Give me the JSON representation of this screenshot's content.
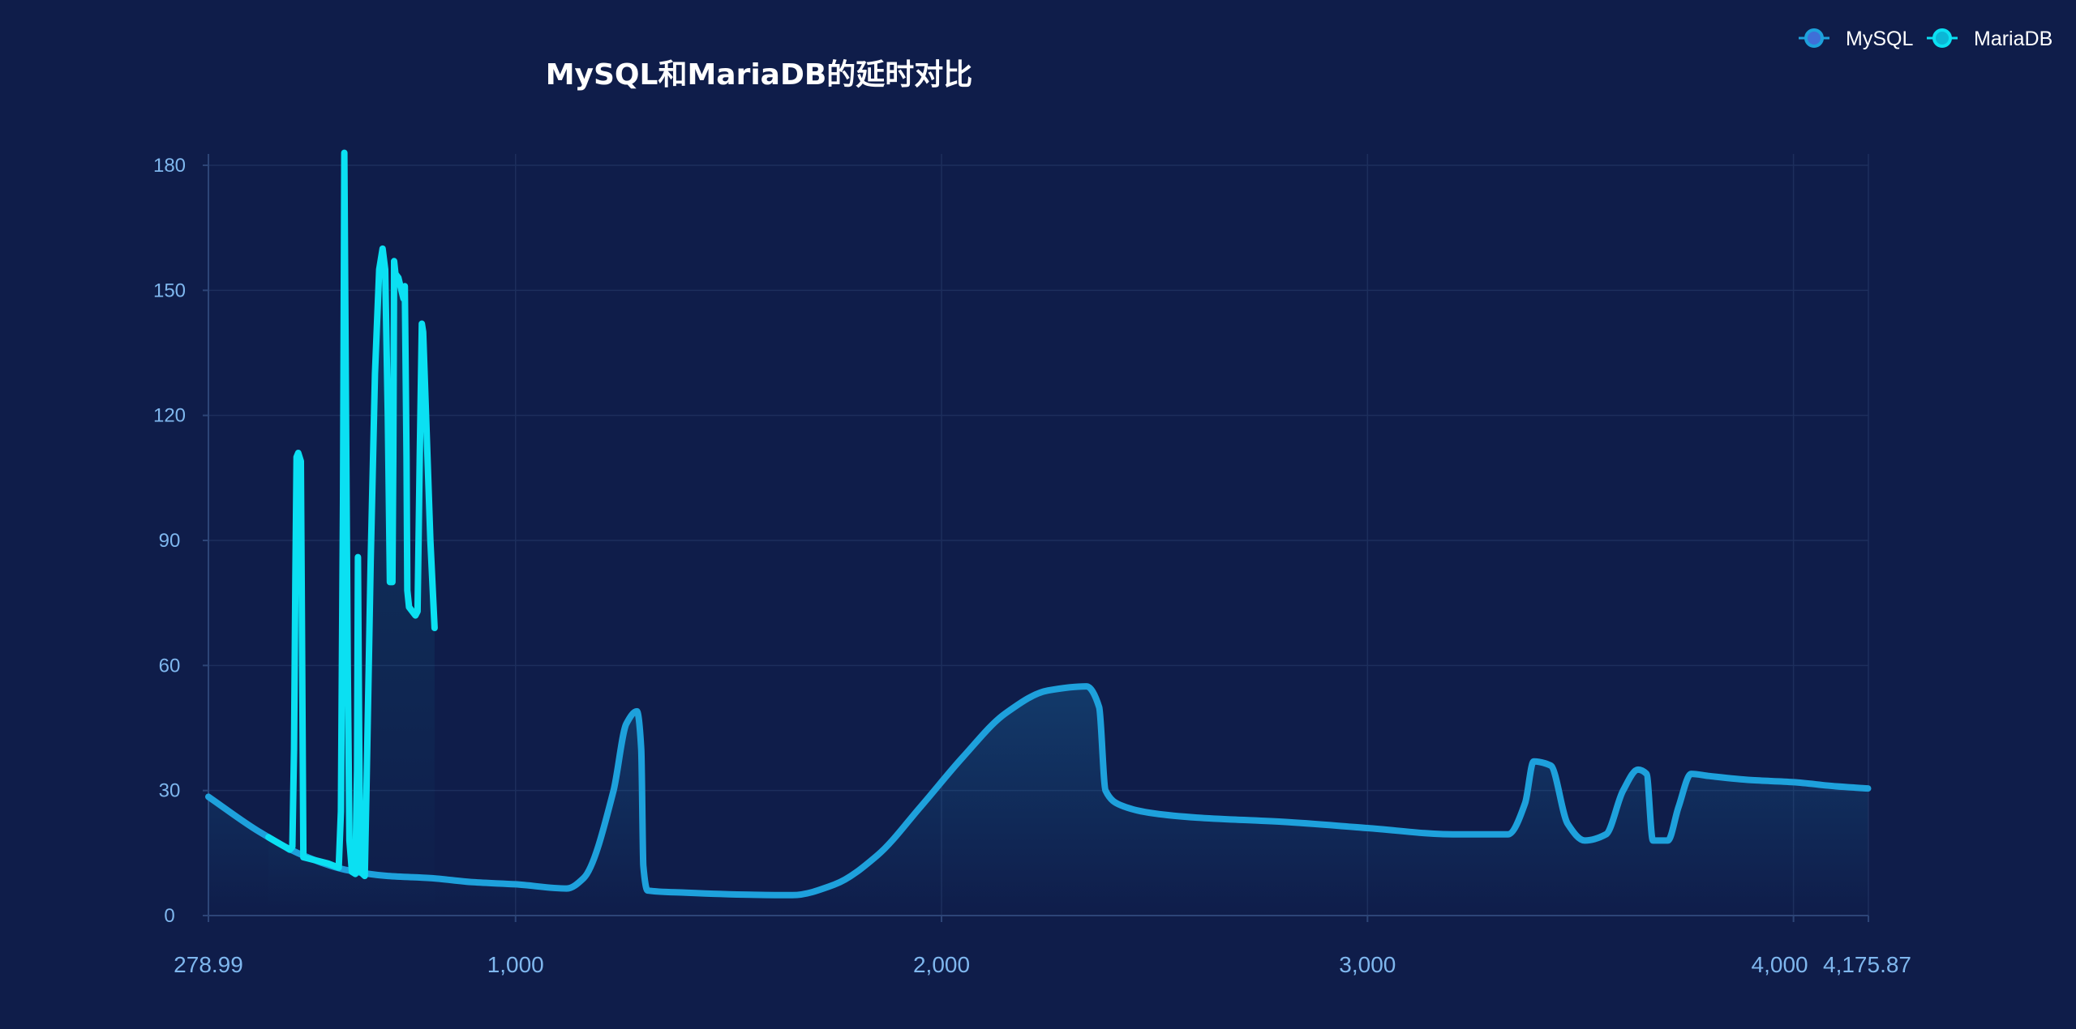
{
  "colors": {
    "background": "#0f1d4a",
    "grid": "#1d2e5c",
    "axis": "#2d4577",
    "tick_text": "#7fb7ee",
    "title_text": "#ffffff"
  },
  "chart_data": {
    "type": "line",
    "title": "MySQL和MariaDB的延时对比",
    "xlabel": "",
    "ylabel": "",
    "xlim": [
      278.99,
      4175.87
    ],
    "ylim": [
      0,
      180
    ],
    "x_ticks": [
      278.99,
      1000,
      2000,
      3000,
      4000,
      4175.87
    ],
    "x_tick_labels": [
      "278.99",
      "1,000",
      "2,000",
      "3,000",
      "4,000",
      "4,175.87"
    ],
    "y_ticks": [
      0,
      30,
      60,
      90,
      120,
      150,
      180
    ],
    "y_tick_labels": [
      "0",
      "30",
      "60",
      "90",
      "120",
      "150",
      "180"
    ],
    "grid": true,
    "legend_position": "top-right",
    "series": [
      {
        "name": "MySQL",
        "color": "#1ea1dc",
        "smooth": true,
        "area": true,
        "points": [
          [
            279,
            28.5
          ],
          [
            400,
            20
          ],
          [
            500,
            14.5
          ],
          [
            600,
            11
          ],
          [
            700,
            9.5
          ],
          [
            800,
            9
          ],
          [
            900,
            8
          ],
          [
            1000,
            7.5
          ],
          [
            1120,
            6.5
          ],
          [
            1160,
            9
          ],
          [
            1230,
            30
          ],
          [
            1260,
            46
          ],
          [
            1285,
            49
          ],
          [
            1295,
            40
          ],
          [
            1300,
            12
          ],
          [
            1310,
            6
          ],
          [
            1400,
            5.5
          ],
          [
            1550,
            5
          ],
          [
            1650,
            4.9
          ],
          [
            1750,
            7.5
          ],
          [
            1850,
            14.5
          ],
          [
            1950,
            26
          ],
          [
            2050,
            38
          ],
          [
            2150,
            48.5
          ],
          [
            2250,
            54
          ],
          [
            2340,
            55
          ],
          [
            2370,
            50
          ],
          [
            2385,
            30
          ],
          [
            2420,
            26.5
          ],
          [
            2500,
            24.5
          ],
          [
            2600,
            23.5
          ],
          [
            2800,
            22.5
          ],
          [
            3000,
            21
          ],
          [
            3200,
            19.5
          ],
          [
            3330,
            19.5
          ],
          [
            3370,
            27
          ],
          [
            3390,
            37
          ],
          [
            3430,
            36
          ],
          [
            3470,
            22
          ],
          [
            3510,
            18
          ],
          [
            3560,
            19.5
          ],
          [
            3600,
            30
          ],
          [
            3635,
            35
          ],
          [
            3655,
            34
          ],
          [
            3670,
            18
          ],
          [
            3705,
            18
          ],
          [
            3730,
            26
          ],
          [
            3760,
            34
          ],
          [
            3800,
            33.5
          ],
          [
            3900,
            32.5
          ],
          [
            4000,
            32
          ],
          [
            4100,
            31
          ],
          [
            4175,
            30.5
          ]
        ]
      },
      {
        "name": "MariaDB",
        "color": "#0be0f2",
        "smooth": false,
        "area": true,
        "points": [
          [
            420,
            18.8
          ],
          [
            440,
            17.6
          ],
          [
            460,
            16.4
          ],
          [
            470,
            15.8
          ],
          [
            476,
            16.5
          ],
          [
            480,
            40
          ],
          [
            483,
            80
          ],
          [
            486,
            110
          ],
          [
            490,
            111
          ],
          [
            496,
            109
          ],
          [
            498,
            80
          ],
          [
            500,
            45
          ],
          [
            502,
            14
          ],
          [
            560,
            12.5
          ],
          [
            585,
            11.5
          ],
          [
            590,
            25
          ],
          [
            595,
            100
          ],
          [
            598,
            183
          ],
          [
            602,
            120
          ],
          [
            606,
            60
          ],
          [
            610,
            18
          ],
          [
            616,
            10.5
          ],
          [
            624,
            10
          ],
          [
            628,
            35
          ],
          [
            630,
            86
          ],
          [
            633,
            40
          ],
          [
            636,
            10.5
          ],
          [
            646,
            9.5
          ],
          [
            650,
            30
          ],
          [
            660,
            85
          ],
          [
            670,
            130
          ],
          [
            680,
            155
          ],
          [
            688,
            160
          ],
          [
            694,
            155
          ],
          [
            700,
            120
          ],
          [
            705,
            80
          ],
          [
            711,
            80
          ],
          [
            713,
            110
          ],
          [
            715,
            157
          ],
          [
            718,
            154
          ],
          [
            725,
            153
          ],
          [
            732,
            150
          ],
          [
            737,
            148
          ],
          [
            740,
            151
          ],
          [
            744,
            110
          ],
          [
            746,
            78
          ],
          [
            750,
            74
          ],
          [
            765,
            72
          ],
          [
            770,
            73
          ],
          [
            775,
            110
          ],
          [
            780,
            142
          ],
          [
            783,
            140
          ],
          [
            790,
            120
          ],
          [
            800,
            90
          ],
          [
            810,
            69
          ]
        ]
      }
    ]
  }
}
